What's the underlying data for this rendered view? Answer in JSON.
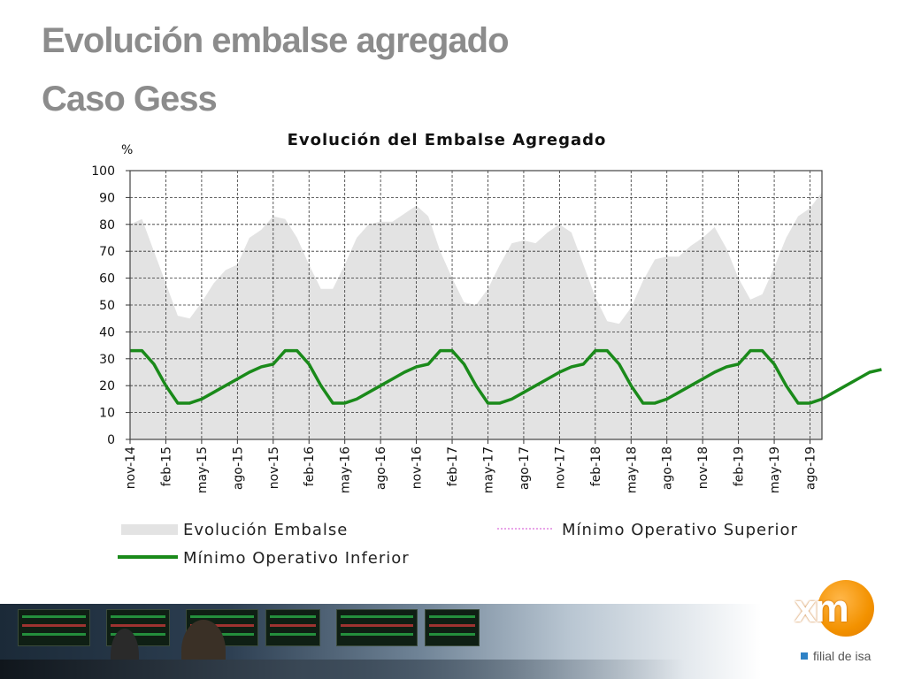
{
  "slide": {
    "title_line1": "Evolución embalse agregado",
    "title_line2": "Caso Gess"
  },
  "logo": {
    "mark": "xm",
    "tagline": "filial de isa",
    "accent_color": "#f39200",
    "tagline_square_color": "#2e82c6"
  },
  "chart_data": {
    "type": "area",
    "title": "Evolución del Embalse Agregado",
    "ylabel": "%",
    "xlabel": "",
    "ylim": [
      0,
      100
    ],
    "yticks": [
      0,
      10,
      20,
      30,
      40,
      50,
      60,
      70,
      80,
      90,
      100
    ],
    "grid": true,
    "x_tick_labels": [
      "nov-14",
      "feb-15",
      "may-15",
      "ago-15",
      "nov-15",
      "feb-16",
      "may-16",
      "ago-16",
      "nov-16",
      "feb-17",
      "may-17",
      "ago-17",
      "nov-17",
      "feb-18",
      "may-18",
      "ago-18",
      "nov-18",
      "feb-19",
      "may-19",
      "ago-19"
    ],
    "months_per_tick": 3,
    "series": [
      {
        "name": "Evolución Embalse",
        "kind": "area",
        "color": "#e3e3e3",
        "values": [
          80,
          82,
          70,
          58,
          46,
          45,
          51,
          58,
          63,
          65,
          75,
          78,
          83,
          82,
          75,
          65,
          56,
          56,
          65,
          75,
          80,
          81,
          81,
          84,
          87,
          83,
          70,
          60,
          51,
          50,
          56,
          65,
          73,
          74,
          73,
          77,
          80,
          77,
          65,
          53,
          44,
          43,
          49,
          59,
          67,
          68,
          68,
          72,
          75,
          79,
          71,
          60,
          52,
          54,
          64,
          75,
          83,
          86,
          92
        ]
      },
      {
        "name": "Mínimo Operativo Superior",
        "kind": "line",
        "color": "#d04ad0",
        "values": []
      },
      {
        "name": "Mínimo Operativo Inferior",
        "kind": "line",
        "color": "#1a8a1a",
        "values": [
          33,
          33,
          28,
          20,
          13.5,
          13.5,
          15,
          17.5,
          20,
          22.5,
          25,
          27,
          28,
          33,
          33,
          28,
          20,
          13.5,
          13.5,
          15,
          17.5,
          20,
          22.5,
          25,
          27,
          28,
          33,
          33,
          28,
          20,
          13.5,
          13.5,
          15,
          17.5,
          20,
          22.5,
          25,
          27,
          28,
          33,
          33,
          28,
          20,
          13.5,
          13.5,
          15,
          17.5,
          20,
          22.5,
          25,
          27,
          28,
          33,
          33,
          28,
          20,
          13.5,
          13.5,
          15,
          17.5,
          20,
          22.5,
          25,
          26
        ]
      }
    ],
    "legend": {
      "placement": "bottom",
      "entries": [
        "Evolución Embalse",
        "Mínimo Operativo Superior",
        "Mínimo Operativo Inferior"
      ]
    }
  }
}
